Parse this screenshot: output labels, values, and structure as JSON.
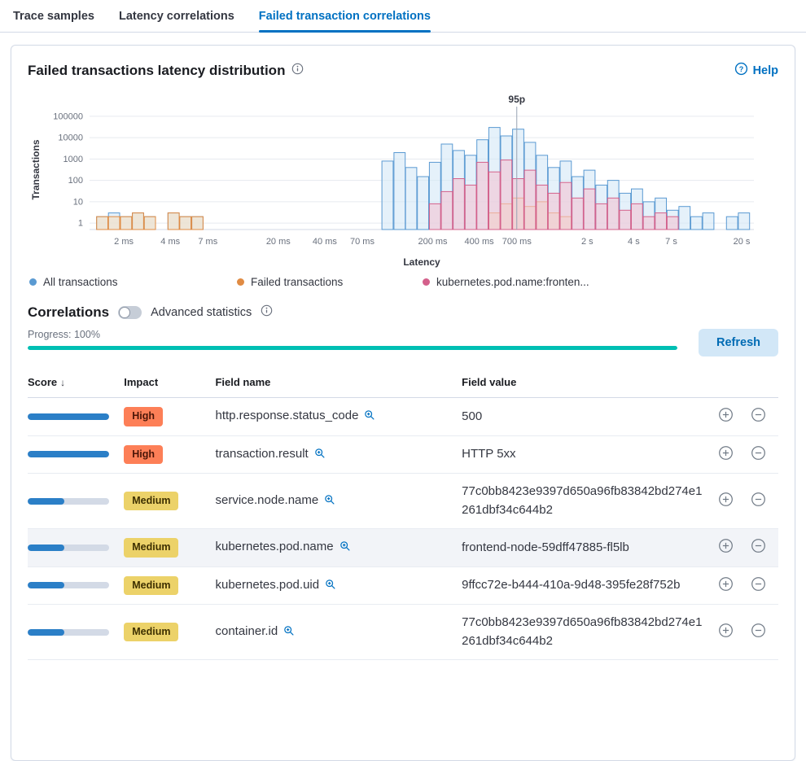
{
  "tabs": [
    {
      "label": "Trace samples",
      "active": false
    },
    {
      "label": "Latency correlations",
      "active": false
    },
    {
      "label": "Failed transaction correlations",
      "active": true
    }
  ],
  "panel": {
    "title": "Failed transactions latency distribution",
    "help_label": "Help"
  },
  "chart_data": {
    "type": "bar",
    "title": "Failed transactions latency distribution",
    "xlabel": "Latency",
    "ylabel": "Transactions",
    "x_scale": "log",
    "y_scale": "log",
    "x_domain_ms": [
      1.2,
      24000
    ],
    "y_domain": [
      1,
      100000
    ],
    "y_ticks": [
      1,
      10,
      100,
      1000,
      10000,
      100000
    ],
    "x_ticks": [
      {
        "ms": 2,
        "label": "2 ms"
      },
      {
        "ms": 4,
        "label": "4 ms"
      },
      {
        "ms": 7,
        "label": "7 ms"
      },
      {
        "ms": 20,
        "label": "20 ms"
      },
      {
        "ms": 40,
        "label": "40 ms"
      },
      {
        "ms": 70,
        "label": "70 ms"
      },
      {
        "ms": 200,
        "label": "200 ms"
      },
      {
        "ms": 400,
        "label": "400 ms"
      },
      {
        "ms": 700,
        "label": "700 ms"
      },
      {
        "ms": 2000,
        "label": "2 s"
      },
      {
        "ms": 4000,
        "label": "4 s"
      },
      {
        "ms": 7000,
        "label": "7 s"
      },
      {
        "ms": 20000,
        "label": "20 s"
      }
    ],
    "annotation": {
      "label": "95p",
      "ms": 700
    },
    "grid": true,
    "legend_position": "bottom",
    "bins_ms": [
      1.45,
      1.73,
      2.07,
      2.47,
      2.95,
      3.52,
      4.2,
      5.01,
      5.99,
      7.15,
      8.53,
      10.2,
      12.2,
      14.5,
      17.3,
      20.7,
      24.7,
      29.5,
      35.2,
      42,
      50.1,
      59.9,
      71.5,
      85.3,
      102,
      122,
      145,
      173,
      207,
      247,
      295,
      352,
      420,
      502,
      599,
      715,
      853,
      1019,
      1216,
      1452,
      1734,
      2069,
      2471,
      2949,
      3521,
      4203,
      5018,
      5991,
      7152,
      8538,
      10193,
      12169,
      14528,
      17344,
      20706
    ],
    "series": [
      {
        "name": "All transactions",
        "color": "#5a9ad2",
        "fill": "#d4e7f7",
        "values": [
          2,
          3,
          2,
          3,
          2,
          0,
          3,
          2,
          2,
          0,
          0,
          0,
          0,
          0,
          0,
          0,
          0,
          0,
          0,
          0,
          0,
          0,
          0,
          0,
          800,
          2000,
          400,
          150,
          700,
          5000,
          2500,
          1500,
          8000,
          30000,
          12000,
          25000,
          6000,
          1500,
          400,
          800,
          150,
          300,
          60,
          100,
          25,
          40,
          10,
          15,
          4,
          6,
          2,
          3,
          0,
          2,
          3
        ]
      },
      {
        "name": "Failed transactions",
        "color": "#e08b43",
        "fill": "#f3ddc0",
        "values": [
          2,
          2,
          2,
          3,
          2,
          0,
          3,
          2,
          2,
          0,
          0,
          0,
          0,
          0,
          0,
          0,
          0,
          0,
          0,
          0,
          0,
          0,
          0,
          0,
          0,
          0,
          0,
          0,
          0,
          0,
          0,
          0,
          0,
          3,
          8,
          15,
          6,
          10,
          3,
          2,
          0,
          0,
          0,
          0,
          0,
          0,
          0,
          0,
          0,
          0,
          0,
          0,
          0,
          0,
          0
        ]
      },
      {
        "name": "kubernetes.pod.name:fronten...",
        "color": "#d4608b",
        "fill": "#f2c4d3",
        "values": [
          0,
          0,
          0,
          0,
          0,
          0,
          0,
          0,
          0,
          0,
          0,
          0,
          0,
          0,
          0,
          0,
          0,
          0,
          0,
          0,
          0,
          0,
          0,
          0,
          0,
          0,
          0,
          0,
          8,
          30,
          120,
          60,
          700,
          250,
          900,
          120,
          300,
          60,
          25,
          80,
          15,
          40,
          8,
          15,
          4,
          8,
          2,
          3,
          2,
          0,
          0,
          0,
          0,
          0,
          0
        ]
      }
    ]
  },
  "correlations": {
    "title": "Correlations",
    "toggle_label": "Advanced statistics",
    "toggle_on": false,
    "progress_label": "Progress: 100%",
    "progress_value": 100,
    "accent_color": "#00bfb3",
    "refresh_label": "Refresh"
  },
  "table": {
    "headers": [
      "Score",
      "Impact",
      "Field name",
      "Field value"
    ],
    "score_bar_color": "#2b7fc7",
    "impact_colors": {
      "High": "#fd7f57",
      "Medium": "#ecd269"
    },
    "impact_text_colors": {
      "High": "#4a1507",
      "Medium": "#3d2f00"
    },
    "rows": [
      {
        "score": 1.0,
        "impact": "High",
        "field_name": "http.response.status_code",
        "field_value": "500",
        "selected": false
      },
      {
        "score": 1.0,
        "impact": "High",
        "field_name": "transaction.result",
        "field_value": "HTTP 5xx",
        "selected": false
      },
      {
        "score": 0.45,
        "impact": "Medium",
        "field_name": "service.node.name",
        "field_value": "77c0bb8423e9397d650a96fb83842bd274e1261dbf34c644b2",
        "selected": false
      },
      {
        "score": 0.45,
        "impact": "Medium",
        "field_name": "kubernetes.pod.name",
        "field_value": "frontend-node-59dff47885-fl5lb",
        "selected": true
      },
      {
        "score": 0.45,
        "impact": "Medium",
        "field_name": "kubernetes.pod.uid",
        "field_value": "9ffcc72e-b444-410a-9d48-395fe28f752b",
        "selected": false
      },
      {
        "score": 0.45,
        "impact": "Medium",
        "field_name": "container.id",
        "field_value": "77c0bb8423e9397d650a96fb83842bd274e1261dbf34c644b2",
        "selected": false
      }
    ]
  }
}
